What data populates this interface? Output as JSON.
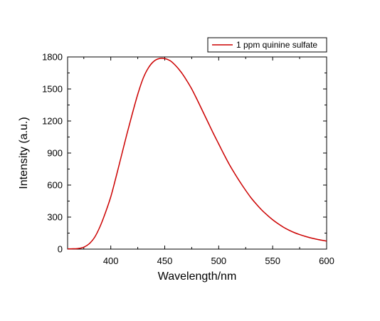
{
  "chart_data": {
    "type": "line",
    "xlabel": "Wavelength/nm",
    "ylabel": "Intensity (a.u.)",
    "xlim": [
      360,
      600
    ],
    "ylim": [
      0,
      1800
    ],
    "x_ticks": [
      400,
      450,
      500,
      550,
      600
    ],
    "y_ticks": [
      0,
      300,
      600,
      900,
      1200,
      1500,
      1800
    ],
    "x_tick_labels": [
      "400",
      "450",
      "500",
      "550",
      "600"
    ],
    "y_tick_labels": [
      "0",
      "300",
      "600",
      "900",
      "1200",
      "1500",
      "1800"
    ],
    "grid": false,
    "legend_position": "top-right",
    "series": [
      {
        "name": "1 ppm quinine sulfate",
        "color": "#cc0000",
        "x": [
          360,
          365,
          370,
          375,
          380,
          385,
          390,
          395,
          400,
          405,
          410,
          415,
          420,
          425,
          430,
          435,
          440,
          445,
          450,
          455,
          460,
          465,
          470,
          475,
          480,
          485,
          490,
          495,
          500,
          505,
          510,
          515,
          520,
          525,
          530,
          535,
          540,
          545,
          550,
          555,
          560,
          565,
          570,
          575,
          580,
          585,
          590,
          595,
          600
        ],
        "y": [
          2,
          3,
          6,
          18,
          50,
          110,
          210,
          340,
          490,
          680,
          880,
          1080,
          1270,
          1450,
          1600,
          1700,
          1760,
          1785,
          1785,
          1765,
          1720,
          1660,
          1585,
          1500,
          1400,
          1295,
          1190,
          1085,
          985,
          885,
          790,
          705,
          625,
          550,
          480,
          420,
          365,
          318,
          275,
          238,
          205,
          178,
          155,
          136,
          120,
          106,
          94,
          84,
          75
        ]
      }
    ]
  }
}
